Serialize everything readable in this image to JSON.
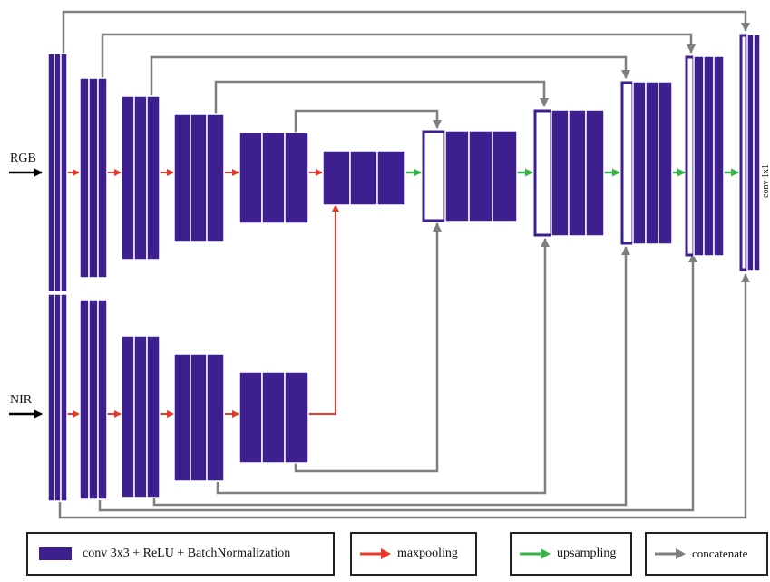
{
  "inputs": {
    "rgb_label": "RGB",
    "nir_label": "NIR"
  },
  "output": {
    "conv_label": "conv 1x1"
  },
  "legend": {
    "conv": "conv 3x3 + ReLU + BatchNormalization",
    "maxpool": "maxpooling",
    "upsample": "upsampling",
    "concat": "concatenate"
  },
  "colors": {
    "block": "#3d1f8f",
    "maxpool": "#e8392a",
    "upsample": "#37b34a",
    "concat": "#7f7f7f",
    "input_arrow": "#000000"
  }
}
